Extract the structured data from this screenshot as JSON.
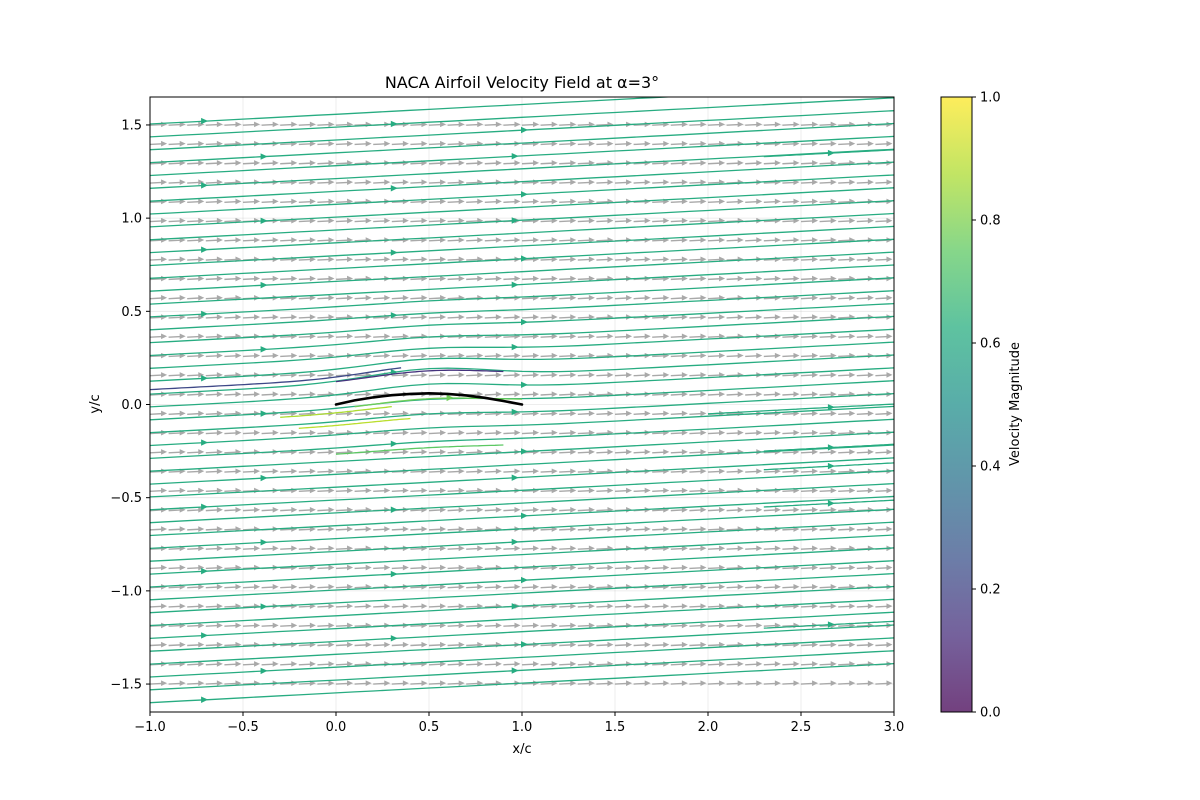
{
  "chart_data": {
    "type": "streamplot",
    "title": "NACA Airfoil Velocity Field at α=3°",
    "xlabel": "x/c",
    "ylabel": "y/c",
    "xlim": [
      -1.0,
      3.0
    ],
    "ylim": [
      -1.65,
      1.65
    ],
    "xticks": [
      -1.0,
      -0.5,
      0.0,
      0.5,
      1.0,
      1.5,
      2.0,
      2.5,
      3.0
    ],
    "yticks": [
      -1.5,
      -1.0,
      -0.5,
      0.0,
      0.5,
      1.0,
      1.5
    ],
    "xtick_labels": [
      "−1.0",
      "−0.5",
      "0.0",
      "0.5",
      "1.0",
      "1.5",
      "2.0",
      "2.5",
      "3.0"
    ],
    "ytick_labels": [
      "−1.5",
      "−1.0",
      "−0.5",
      "0.0",
      "0.5",
      "1.0",
      "1.5"
    ],
    "grid": true,
    "freestream_angle_deg": 3,
    "uniform_speed": 0.62,
    "airfoil": {
      "x": [
        0.0,
        0.1,
        0.2,
        0.3,
        0.4,
        0.5,
        0.6,
        0.7,
        0.8,
        0.9,
        1.0
      ],
      "y": [
        0.0,
        0.022,
        0.038,
        0.05,
        0.057,
        0.06,
        0.057,
        0.049,
        0.036,
        0.019,
        0.0
      ],
      "color": "#000000"
    },
    "quiver_color": "#a9a9a9",
    "colorbar": {
      "label": "Velocity Magnitude",
      "min": 0.0,
      "max": 1.0,
      "ticks": [
        0.0,
        0.2,
        0.4,
        0.6,
        0.8,
        1.0
      ],
      "tick_labels": [
        "0.0",
        "0.2",
        "0.4",
        "0.6",
        "0.8",
        "1.0"
      ],
      "colormap": "viridis"
    }
  }
}
